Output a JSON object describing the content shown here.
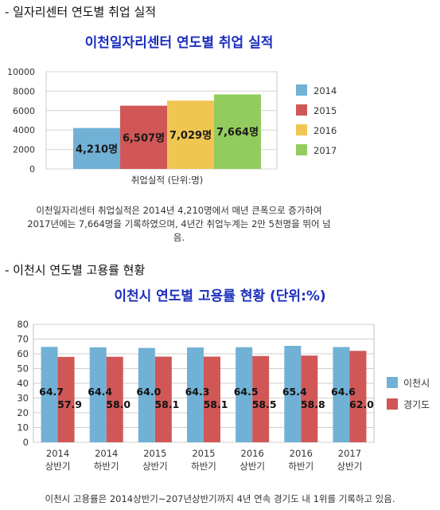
{
  "section1": {
    "heading": "- 일자리센터 연도별 취업 실적",
    "caption": "이천일자리센터 취업실적은 2014년 4,210명에서 매년 큰폭으로 증가하여 2017년에는 7,664명을 기록하였으며, 4년간 취업누계는 2만 5천명을 뛰어 넘음."
  },
  "section2": {
    "heading": "- 이천시 연도별 고용률 현황",
    "caption": "이천시 고용률은 2014상반기~207년상반기까지 4년 연속 경기도 내 1위를 기록하고 있음."
  },
  "colors": {
    "blue": "#71b1d6",
    "red": "#d15757",
    "yellow": "#f0c652",
    "green": "#93cc5e",
    "title": "#1b2fbd"
  },
  "chart_data": [
    {
      "type": "bar",
      "title": "이천일자리센터 연도별 취업 실적",
      "xlabel": "취업실적 (단위:명)",
      "ylabel": "",
      "ylim": [
        0,
        10000
      ],
      "yticks": [
        "0",
        "2000",
        "4000",
        "6000",
        "8000",
        "10000"
      ],
      "categories": [
        "취업실적 (단위:명)"
      ],
      "series": [
        {
          "name": "2014",
          "values": [
            4210
          ],
          "label": "4,210명"
        },
        {
          "name": "2015",
          "values": [
            6507
          ],
          "label": "6,507명"
        },
        {
          "name": "2016",
          "values": [
            7029
          ],
          "label": "7,029명"
        },
        {
          "name": "2017",
          "values": [
            7664
          ],
          "label": "7,664명"
        }
      ],
      "legend": "right",
      "grid": true
    },
    {
      "type": "bar",
      "title": "이천시 연도별 고용률 현황 (단위:%)",
      "xlabel": "",
      "ylabel": "",
      "ylim": [
        0,
        80
      ],
      "yticks": [
        "0",
        "10",
        "20",
        "30",
        "40",
        "50",
        "60",
        "70",
        "80"
      ],
      "categories": [
        [
          "2014",
          "상반기"
        ],
        [
          "2014",
          "하반기"
        ],
        [
          "2015",
          "상반기"
        ],
        [
          "2015",
          "하반기"
        ],
        [
          "2016",
          "상반기"
        ],
        [
          "2016",
          "하반기"
        ],
        [
          "2017",
          "상반기"
        ]
      ],
      "series": [
        {
          "name": "이천시",
          "values": [
            64.7,
            64.4,
            64.0,
            64.3,
            64.5,
            65.4,
            64.6
          ],
          "labels": [
            "64.7",
            "64.4",
            "64.0",
            "64.3",
            "64.5",
            "65.4",
            "64.6"
          ]
        },
        {
          "name": "경기도",
          "values": [
            57.9,
            58.0,
            58.1,
            58.1,
            58.5,
            58.8,
            62.0
          ],
          "labels": [
            "57.9",
            "58.0",
            "58.1",
            "58.1",
            "58.5",
            "58.8",
            "62.0"
          ]
        }
      ],
      "legend": "right",
      "grid": true
    }
  ]
}
